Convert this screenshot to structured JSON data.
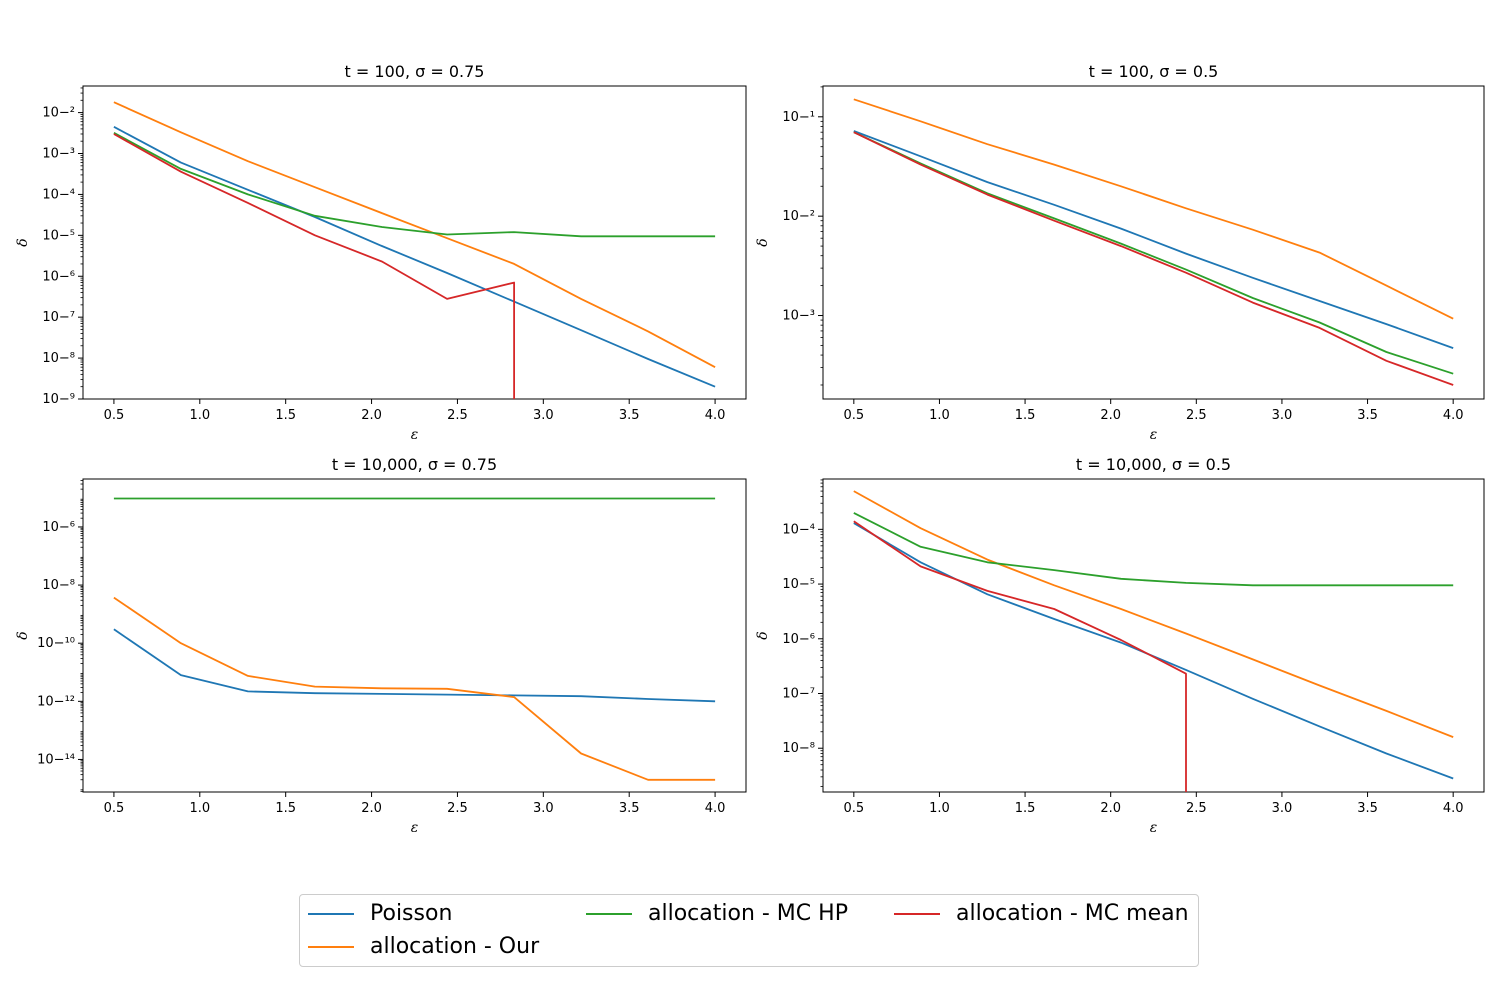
{
  "chart_data": [
    {
      "type": "line",
      "title": "t = 100, σ = 0.75",
      "xlabel": "ε",
      "ylabel": "δ",
      "yscale": "log",
      "xlim": [
        0.32,
        4.18
      ],
      "ylim_exp": [
        -9,
        -1.35
      ],
      "xticks": [
        0.5,
        1.0,
        1.5,
        2.0,
        2.5,
        3.0,
        3.5,
        4.0
      ],
      "yticks_exp": [
        -9,
        -8,
        -7,
        -6,
        -5,
        -4,
        -3,
        -2
      ],
      "x": [
        0.5,
        0.89,
        1.28,
        1.67,
        2.06,
        2.44,
        2.83,
        3.22,
        3.61,
        4.0
      ],
      "series": [
        {
          "name": "Poisson",
          "values": [
            0.0045,
            0.0006,
            0.00013,
            2.8e-05,
            5.5e-06,
            1.2e-06,
            2.4e-07,
            4.8e-08,
            9.5e-09,
            2e-09
          ]
        },
        {
          "name": "allocation - Our",
          "values": [
            0.018,
            0.0033,
            0.00065,
            0.00015,
            3.5e-05,
            8.5e-06,
            2e-06,
            2.8e-07,
            4.5e-08,
            6e-09
          ]
        },
        {
          "name": "allocation - MC HP",
          "values": [
            0.0032,
            0.00042,
            0.0001,
            3e-05,
            1.6e-05,
            1.05e-05,
            1.2e-05,
            9.5e-06,
            9.5e-06,
            9.5e-06
          ]
        },
        {
          "name": "allocation - MC mean",
          "values": [
            0.003,
            0.00036,
            6.2e-05,
            1e-05,
            2.3e-06,
            2.8e-07,
            7e-07,
            0,
            null,
            null
          ]
        }
      ]
    },
    {
      "type": "line",
      "title": "t = 100, σ = 0.5",
      "xlabel": "ε",
      "ylabel": "δ",
      "yscale": "log",
      "xlim": [
        0.32,
        4.18
      ],
      "ylim_exp": [
        -3.84,
        -0.69
      ],
      "xticks": [
        0.5,
        1.0,
        1.5,
        2.0,
        2.5,
        3.0,
        3.5,
        4.0
      ],
      "yticks_exp": [
        -3,
        -2,
        -1
      ],
      "x": [
        0.5,
        0.89,
        1.28,
        1.67,
        2.06,
        2.44,
        2.83,
        3.22,
        3.61,
        4.0
      ],
      "series": [
        {
          "name": "Poisson",
          "values": [
            0.072,
            0.04,
            0.022,
            0.013,
            0.0075,
            0.0042,
            0.0024,
            0.0014,
            0.00082,
            0.00047
          ]
        },
        {
          "name": "allocation - Our",
          "values": [
            0.15,
            0.09,
            0.053,
            0.033,
            0.02,
            0.012,
            0.0073,
            0.0043,
            0.002,
            0.00093
          ]
        },
        {
          "name": "allocation - MC HP",
          "values": [
            0.07,
            0.034,
            0.017,
            0.0095,
            0.0053,
            0.0029,
            0.0015,
            0.00085,
            0.00043,
            0.00026
          ]
        },
        {
          "name": "allocation - MC mean",
          "values": [
            0.07,
            0.033,
            0.0165,
            0.009,
            0.005,
            0.0027,
            0.00135,
            0.00075,
            0.00035,
            0.0002
          ]
        }
      ]
    },
    {
      "type": "line",
      "title": "t = 10,000, σ = 0.75",
      "xlabel": "ε",
      "ylabel": "δ",
      "yscale": "log",
      "xlim": [
        0.32,
        4.18
      ],
      "ylim_exp": [
        -15.12,
        -4.35
      ],
      "xticks": [
        0.5,
        1.0,
        1.5,
        2.0,
        2.5,
        3.0,
        3.5,
        4.0
      ],
      "yticks_exp": [
        -14,
        -12,
        -10,
        -8,
        -6
      ],
      "x": [
        0.5,
        0.89,
        1.28,
        1.67,
        2.06,
        2.44,
        2.83,
        3.22,
        3.61,
        4.0
      ],
      "series": [
        {
          "name": "Poisson",
          "values": [
            3e-10,
            8e-12,
            2.2e-12,
            1.9e-12,
            1.8e-12,
            1.7e-12,
            1.6e-12,
            1.5e-12,
            1.2e-12,
            1e-12
          ]
        },
        {
          "name": "allocation - Our",
          "values": [
            3.7e-09,
            1e-10,
            7.5e-12,
            3.2e-12,
            2.8e-12,
            2.7e-12,
            1.4e-12,
            1.6e-14,
            2e-15,
            2e-15
          ]
        },
        {
          "name": "allocation - MC HP",
          "values": [
            9.5e-06,
            9.5e-06,
            9.5e-06,
            9.5e-06,
            9.5e-06,
            9.5e-06,
            9.5e-06,
            9.5e-06,
            9.5e-06,
            9.5e-06
          ]
        }
      ]
    },
    {
      "type": "line",
      "title": "t = 10,000, σ = 0.5",
      "xlabel": "ε",
      "ylabel": "δ",
      "yscale": "log",
      "xlim": [
        0.32,
        4.18
      ],
      "ylim_exp": [
        -8.8,
        -3.08
      ],
      "xticks": [
        0.5,
        1.0,
        1.5,
        2.0,
        2.5,
        3.0,
        3.5,
        4.0
      ],
      "yticks_exp": [
        -8,
        -7,
        -6,
        -5,
        -4
      ],
      "x": [
        0.5,
        0.89,
        1.28,
        1.67,
        2.06,
        2.44,
        2.83,
        3.22,
        3.61,
        4.0
      ],
      "series": [
        {
          "name": "Poisson",
          "values": [
            0.00013,
            2.5e-05,
            6.5e-06,
            2.3e-06,
            8.5e-07,
            2.7e-07,
            8e-08,
            2.5e-08,
            8e-09,
            2.8e-09
          ]
        },
        {
          "name": "allocation - Our",
          "values": [
            0.0005,
            0.000105,
            2.8e-05,
            9.5e-06,
            3.5e-06,
            1.25e-06,
            4.2e-07,
            1.4e-07,
            4.8e-08,
            1.6e-08
          ]
        },
        {
          "name": "allocation - MC HP",
          "values": [
            0.0002,
            4.8e-05,
            2.5e-05,
            1.8e-05,
            1.25e-05,
            1.05e-05,
            9.5e-06,
            9.5e-06,
            9.5e-06,
            9.5e-06
          ]
        },
        {
          "name": "allocation - MC mean",
          "values": [
            0.00014,
            2.1e-05,
            7.5e-06,
            3.5e-06,
            9.5e-07,
            2.3e-07,
            0,
            null,
            null,
            null
          ]
        }
      ]
    }
  ],
  "legend": {
    "placement": "bottom-center",
    "entries": [
      {
        "name": "Poisson",
        "color": "#1f77b4"
      },
      {
        "name": "allocation - Our",
        "color": "#ff7f0e"
      },
      {
        "name": "allocation - MC HP",
        "color": "#2ca02c"
      },
      {
        "name": "allocation - MC mean",
        "color": "#d62728"
      }
    ]
  }
}
